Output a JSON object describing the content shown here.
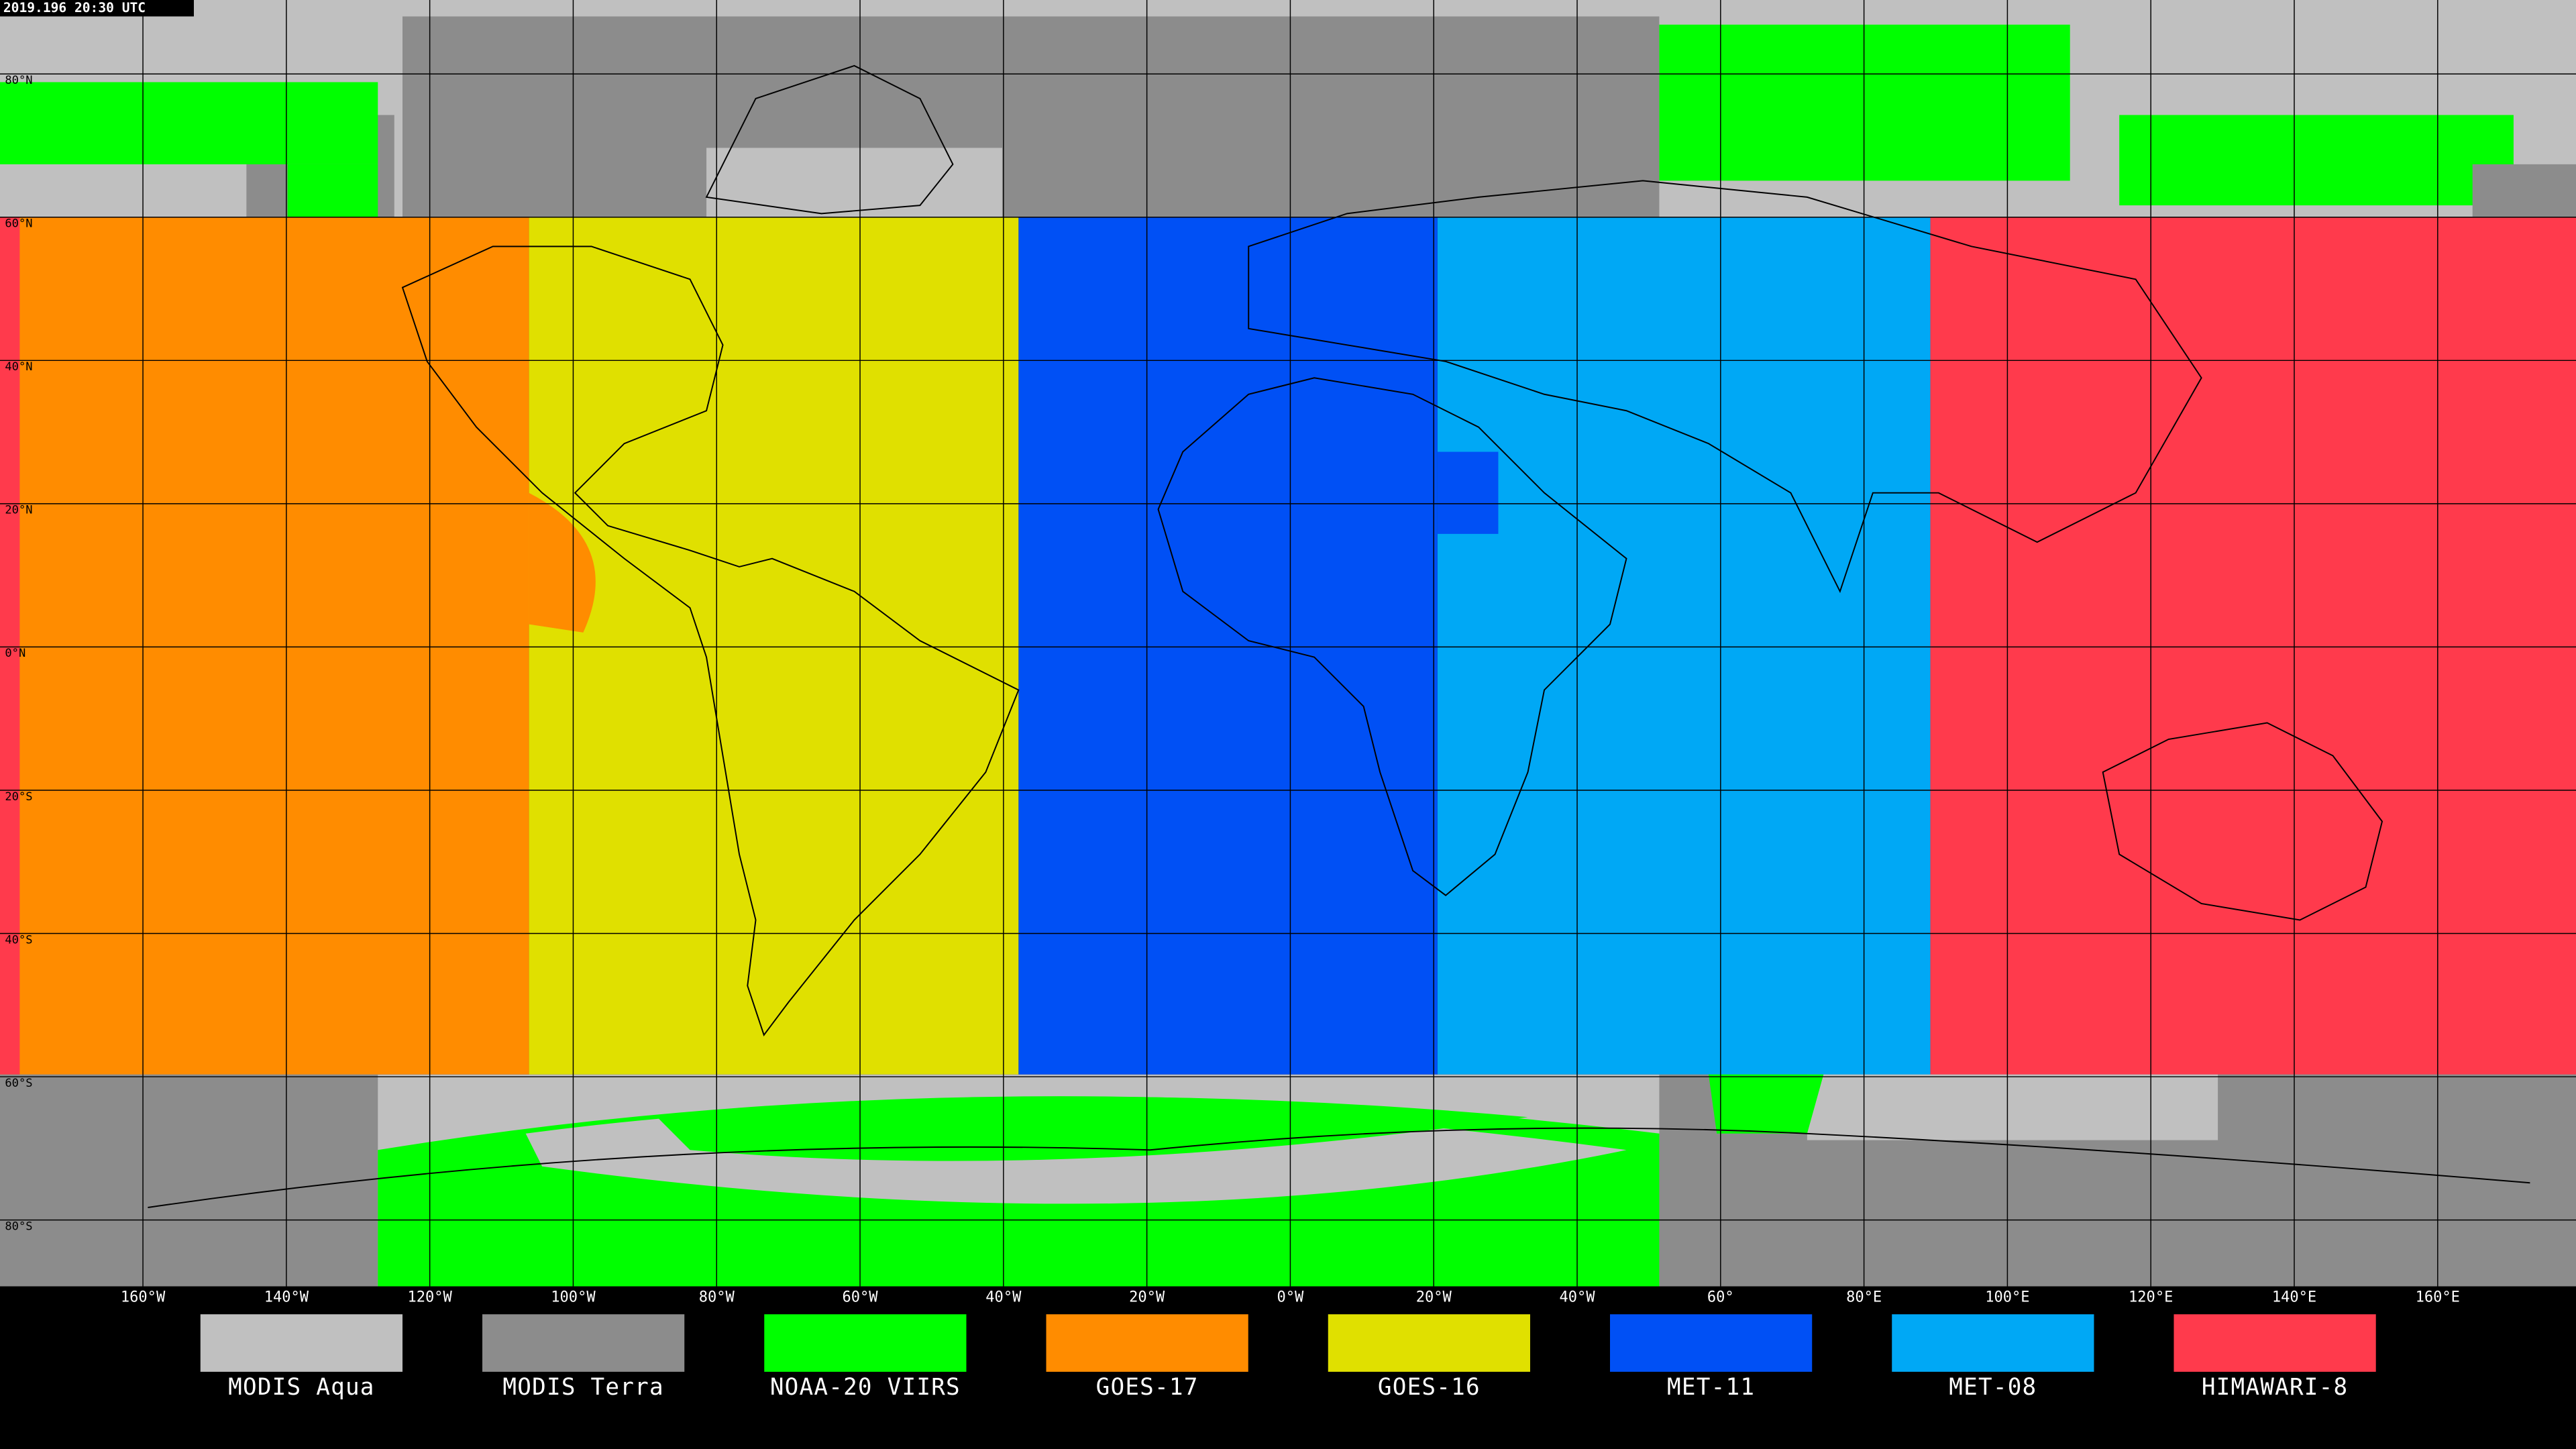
{
  "timestamp": "2019.196 20:30 UTC",
  "latitude_labels": [
    "80°N",
    "60°N",
    "40°N",
    "20°N",
    "0°N",
    "20°S",
    "40°S",
    "60°S",
    "80°S"
  ],
  "longitude_labels": [
    "160°W",
    "140°W",
    "120°W",
    "100°W",
    "80°W",
    "60°W",
    "40°W",
    "20°W",
    "0°W",
    "20°W",
    "40°W",
    "60°",
    "80°E",
    "100°E",
    "120°E",
    "140°E",
    "160°E"
  ],
  "legend": [
    {
      "name": "MODIS Aqua",
      "color": "#c0c0c0"
    },
    {
      "name": "MODIS Terra",
      "color": "#8c8c8c"
    },
    {
      "name": "NOAA-20 VIIRS",
      "color": "#00ff00"
    },
    {
      "name": "GOES-17",
      "color": "#ff8c00"
    },
    {
      "name": "GOES-16",
      "color": "#e0e000"
    },
    {
      "name": "MET-11",
      "color": "#0050f5"
    },
    {
      "name": "MET-08",
      "color": "#00a8f5"
    },
    {
      "name": "HIMAWARI-8",
      "color": "#ff3a4c"
    }
  ]
}
